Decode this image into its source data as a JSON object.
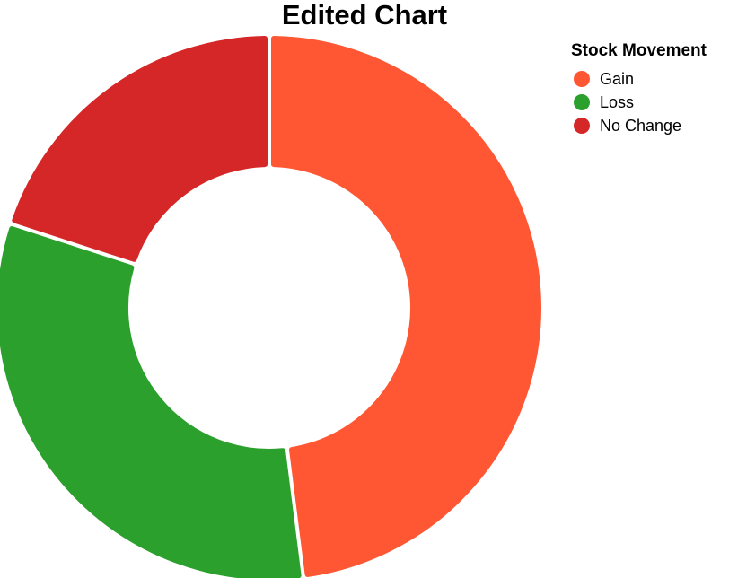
{
  "chart_data": {
    "type": "pie",
    "donut": true,
    "title": "Edited Chart",
    "legend": {
      "title": "Stock Movement",
      "placement": "top-right"
    },
    "slices": [
      {
        "label": "Gain",
        "value": 48,
        "color": "#ff5733"
      },
      {
        "label": "Loss",
        "value": 32,
        "color": "#2ca02c"
      },
      {
        "label": "No Change",
        "value": 20,
        "color": "#d62728"
      }
    ]
  }
}
